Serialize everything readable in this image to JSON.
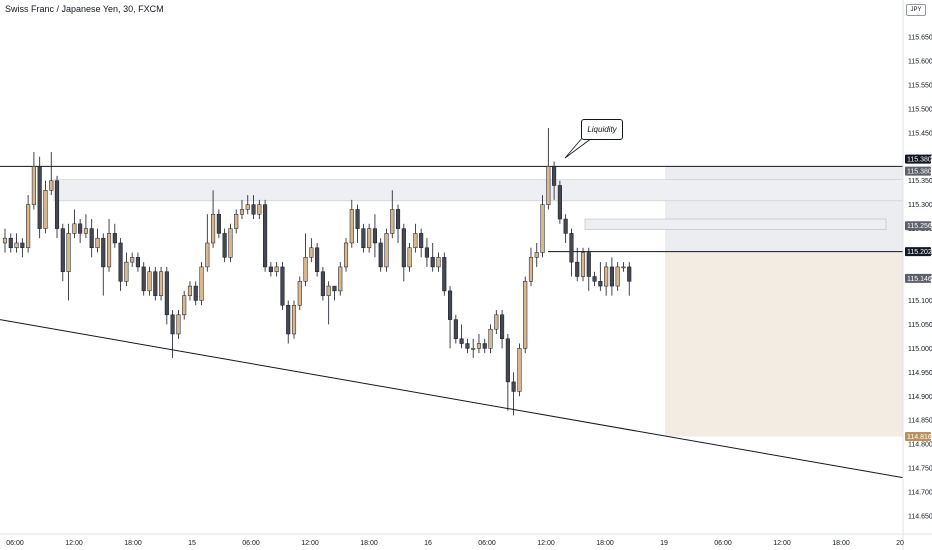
{
  "header": {
    "title": "Swiss Franc / Japanese Yen, 30, FXCM",
    "currency": "JPY"
  },
  "annotation": {
    "text": "Liquidity"
  },
  "colors": {
    "bull": "#d8b78e",
    "bear": "#454852",
    "line": "#131722",
    "zone": "#d4d6dc",
    "target": "#f2ece3"
  },
  "price_tags": [
    {
      "label": "115.380",
      "dark": true
    },
    {
      "label": "115.380",
      "dark": false
    },
    {
      "label": "115.256",
      "dark": false
    },
    {
      "label": "115.202",
      "dark": true
    },
    {
      "label": "115.146",
      "dark": false
    },
    {
      "label": "114.816",
      "dark": false,
      "gold": true
    }
  ],
  "chart_data": {
    "type": "candlestick",
    "title": "Swiss Franc / Japanese Yen, 30, FXCM",
    "y_ticks": [
      "115.650",
      "115.600",
      "115.550",
      "115.500",
      "115.450",
      "115.400",
      "115.350",
      "115.300",
      "115.250",
      "115.200",
      "115.150",
      "115.100",
      "115.050",
      "115.000",
      "114.950",
      "114.900",
      "114.850",
      "114.800",
      "114.750",
      "114.700",
      "114.650"
    ],
    "x_ticks": [
      "06:00",
      "12:00",
      "18:00",
      "15",
      "06:00",
      "12:00",
      "18:00",
      "16",
      "06:00",
      "12:00",
      "18:00",
      "19",
      "06:00",
      "12:00",
      "18:00",
      "20"
    ],
    "ylim": [
      114.62,
      115.69
    ],
    "candles": [
      [
        115.22,
        115.23,
        115.25,
        115.2
      ],
      [
        115.23,
        115.21,
        115.24,
        115.2
      ],
      [
        115.21,
        115.22,
        115.24,
        115.2
      ],
      [
        115.22,
        115.21,
        115.23,
        115.19
      ],
      [
        115.21,
        115.3,
        115.32,
        115.2
      ],
      [
        115.3,
        115.38,
        115.41,
        115.29
      ],
      [
        115.38,
        115.25,
        115.4,
        115.23
      ],
      [
        115.25,
        115.33,
        115.35,
        115.24
      ],
      [
        115.33,
        115.35,
        115.41,
        115.32
      ],
      [
        115.35,
        115.25,
        115.36,
        115.23
      ],
      [
        115.25,
        115.16,
        115.26,
        115.14
      ],
      [
        115.16,
        115.24,
        115.26,
        115.1
      ],
      [
        115.24,
        115.26,
        115.29,
        115.23
      ],
      [
        115.26,
        115.24,
        115.27,
        115.22
      ],
      [
        115.24,
        115.25,
        115.28,
        115.23
      ],
      [
        115.25,
        115.21,
        115.27,
        115.19
      ],
      [
        115.21,
        115.23,
        115.25,
        115.2
      ],
      [
        115.23,
        115.17,
        115.24,
        115.11
      ],
      [
        115.17,
        115.24,
        115.27,
        115.16
      ],
      [
        115.24,
        115.22,
        115.26,
        115.21
      ],
      [
        115.22,
        115.14,
        115.23,
        115.12
      ],
      [
        115.14,
        115.18,
        115.2,
        115.13
      ],
      [
        115.18,
        115.19,
        115.2,
        115.17
      ],
      [
        115.19,
        115.17,
        115.2,
        115.16
      ],
      [
        115.17,
        115.12,
        115.18,
        115.11
      ],
      [
        115.12,
        115.16,
        115.17,
        115.11
      ],
      [
        115.16,
        115.11,
        115.17,
        115.1
      ],
      [
        115.11,
        115.16,
        115.17,
        115.1
      ],
      [
        115.16,
        115.07,
        115.17,
        115.05
      ],
      [
        115.07,
        115.03,
        115.08,
        114.98
      ],
      [
        115.03,
        115.07,
        115.08,
        115.02
      ],
      [
        115.07,
        115.11,
        115.12,
        115.06
      ],
      [
        115.11,
        115.13,
        115.14,
        115.1
      ],
      [
        115.13,
        115.1,
        115.14,
        115.09
      ],
      [
        115.1,
        115.17,
        115.18,
        115.09
      ],
      [
        115.17,
        115.22,
        115.28,
        115.16
      ],
      [
        115.22,
        115.28,
        115.33,
        115.21
      ],
      [
        115.28,
        115.24,
        115.29,
        115.23
      ],
      [
        115.24,
        115.19,
        115.25,
        115.18
      ],
      [
        115.19,
        115.25,
        115.26,
        115.18
      ],
      [
        115.25,
        115.28,
        115.29,
        115.24
      ],
      [
        115.28,
        115.29,
        115.31,
        115.27
      ],
      [
        115.29,
        115.3,
        115.32,
        115.28
      ],
      [
        115.3,
        115.28,
        115.32,
        115.27
      ],
      [
        115.28,
        115.3,
        115.31,
        115.27
      ],
      [
        115.3,
        115.17,
        115.31,
        115.16
      ],
      [
        115.17,
        115.16,
        115.18,
        115.15
      ],
      [
        115.16,
        115.17,
        115.18,
        115.15
      ],
      [
        115.17,
        115.09,
        115.18,
        115.08
      ],
      [
        115.09,
        115.03,
        115.1,
        115.01
      ],
      [
        115.03,
        115.09,
        115.1,
        115.02
      ],
      [
        115.09,
        115.14,
        115.15,
        115.08
      ],
      [
        115.14,
        115.19,
        115.24,
        115.13
      ],
      [
        115.19,
        115.21,
        115.23,
        115.18
      ],
      [
        115.21,
        115.16,
        115.22,
        115.15
      ],
      [
        115.16,
        115.11,
        115.17,
        115.1
      ],
      [
        115.11,
        115.13,
        115.14,
        115.05
      ],
      [
        115.13,
        115.12,
        115.13,
        115.1
      ],
      [
        115.12,
        115.17,
        115.18,
        115.11
      ],
      [
        115.17,
        115.22,
        115.23,
        115.16
      ],
      [
        115.22,
        115.29,
        115.31,
        115.21
      ],
      [
        115.29,
        115.25,
        115.3,
        115.22
      ],
      [
        115.25,
        115.21,
        115.26,
        115.2
      ],
      [
        115.21,
        115.25,
        115.26,
        115.2
      ],
      [
        115.25,
        115.22,
        115.28,
        115.19
      ],
      [
        115.22,
        115.17,
        115.23,
        115.16
      ],
      [
        115.17,
        115.24,
        115.25,
        115.16
      ],
      [
        115.24,
        115.29,
        115.33,
        115.23
      ],
      [
        115.29,
        115.25,
        115.3,
        115.22
      ],
      [
        115.25,
        115.17,
        115.26,
        115.14
      ],
      [
        115.17,
        115.21,
        115.22,
        115.16
      ],
      [
        115.21,
        115.24,
        115.26,
        115.2
      ],
      [
        115.24,
        115.21,
        115.25,
        115.19
      ],
      [
        115.21,
        115.19,
        115.23,
        115.17
      ],
      [
        115.19,
        115.17,
        115.22,
        115.16
      ],
      [
        115.17,
        115.19,
        115.2,
        115.16
      ],
      [
        115.19,
        115.12,
        115.2,
        115.11
      ],
      [
        115.12,
        115.06,
        115.13,
        115.0
      ],
      [
        115.06,
        115.02,
        115.07,
        115.01
      ],
      [
        115.02,
        115.01,
        115.05,
        115.0
      ],
      [
        115.01,
        115.0,
        115.02,
        114.99
      ],
      [
        115.0,
        115.0,
        115.02,
        114.98
      ],
      [
        115.0,
        115.01,
        115.03,
        114.99
      ],
      [
        115.01,
        115.0,
        115.02,
        114.99
      ],
      [
        115.0,
        115.04,
        115.05,
        114.99
      ],
      [
        115.04,
        115.07,
        115.08,
        115.03
      ],
      [
        115.07,
        115.02,
        115.08,
        115.0
      ],
      [
        115.02,
        114.93,
        115.03,
        114.87
      ],
      [
        114.93,
        114.91,
        114.95,
        114.86
      ],
      [
        114.91,
        115.0,
        115.01,
        114.9
      ],
      [
        115.0,
        115.14,
        115.15,
        114.99
      ],
      [
        115.14,
        115.19,
        115.21,
        115.13
      ],
      [
        115.19,
        115.2,
        115.22,
        115.17
      ],
      [
        115.2,
        115.3,
        115.32,
        115.19
      ],
      [
        115.3,
        115.38,
        115.46,
        115.29
      ],
      [
        115.38,
        115.34,
        115.39,
        115.31
      ],
      [
        115.34,
        115.27,
        115.35,
        115.26
      ],
      [
        115.27,
        115.24,
        115.28,
        115.22
      ],
      [
        115.24,
        115.18,
        115.25,
        115.15
      ],
      [
        115.18,
        115.15,
        115.21,
        115.14
      ],
      [
        115.15,
        115.2,
        115.21,
        115.14
      ],
      [
        115.2,
        115.15,
        115.21,
        115.12
      ],
      [
        115.15,
        115.14,
        115.16,
        115.13
      ],
      [
        115.14,
        115.13,
        115.18,
        115.12
      ],
      [
        115.13,
        115.17,
        115.18,
        115.11
      ],
      [
        115.17,
        115.13,
        115.19,
        115.11
      ],
      [
        115.13,
        115.17,
        115.18,
        115.12
      ],
      [
        115.17,
        115.17,
        115.18,
        115.16
      ],
      [
        115.17,
        115.14,
        115.18,
        115.11
      ]
    ],
    "levels": [
      115.38,
      115.202
    ],
    "zones": [
      {
        "top": 115.352,
        "bottom": 115.308
      },
      {
        "top": 115.27,
        "bottom": 115.248
      }
    ],
    "trendline": {
      "from": {
        "x_frac": 0.0,
        "price": 115.06
      },
      "to": {
        "x_frac": 1.0,
        "price": 114.73
      }
    },
    "grid": false
  }
}
